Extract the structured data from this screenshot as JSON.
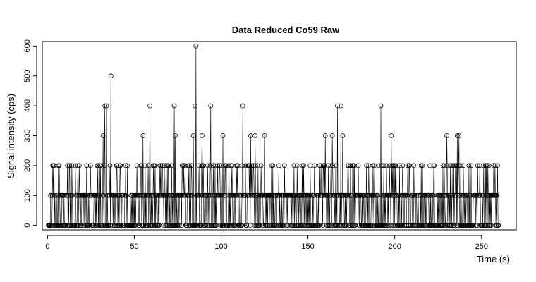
{
  "chart_data": {
    "type": "scatter",
    "title": "Data Reduced Co59 Raw",
    "xlabel": "Time (s)",
    "ylabel": "Signal intensity (cps)",
    "xlim": [
      -3,
      270
    ],
    "ylim": [
      -15,
      615
    ],
    "xticks": [
      0,
      50,
      100,
      150,
      200,
      250
    ],
    "yticks": [
      0,
      100,
      200,
      300,
      400,
      500,
      600
    ],
    "grid": false,
    "style": "points with vertical lines (type='o' style), open circle markers",
    "x_start": 0.5,
    "x_step": 0.25,
    "n_points": 1038,
    "peaks": [
      {
        "x": 36.5,
        "y": 500
      },
      {
        "x": 85.5,
        "y": 600
      },
      {
        "x": 32.0,
        "y": 300
      },
      {
        "x": 33.0,
        "y": 400
      },
      {
        "x": 34.0,
        "y": 400
      },
      {
        "x": 55.0,
        "y": 300
      },
      {
        "x": 59.0,
        "y": 400
      },
      {
        "x": 73.0,
        "y": 400
      },
      {
        "x": 73.5,
        "y": 300
      },
      {
        "x": 84.0,
        "y": 300
      },
      {
        "x": 85.0,
        "y": 400
      },
      {
        "x": 89.0,
        "y": 300
      },
      {
        "x": 94.0,
        "y": 400
      },
      {
        "x": 101.0,
        "y": 300
      },
      {
        "x": 112.5,
        "y": 400
      },
      {
        "x": 117.0,
        "y": 300
      },
      {
        "x": 119.5,
        "y": 300
      },
      {
        "x": 125.0,
        "y": 300
      },
      {
        "x": 160.0,
        "y": 300
      },
      {
        "x": 164.0,
        "y": 300
      },
      {
        "x": 167.0,
        "y": 400
      },
      {
        "x": 169.0,
        "y": 400
      },
      {
        "x": 170.0,
        "y": 300
      },
      {
        "x": 192.0,
        "y": 400
      },
      {
        "x": 198.0,
        "y": 300
      },
      {
        "x": 230.0,
        "y": 300
      },
      {
        "x": 236.0,
        "y": 300
      },
      {
        "x": 237.0,
        "y": 300
      }
    ],
    "level_probabilities": {
      "0": 0.42,
      "100": 0.4,
      "200": 0.18
    }
  }
}
